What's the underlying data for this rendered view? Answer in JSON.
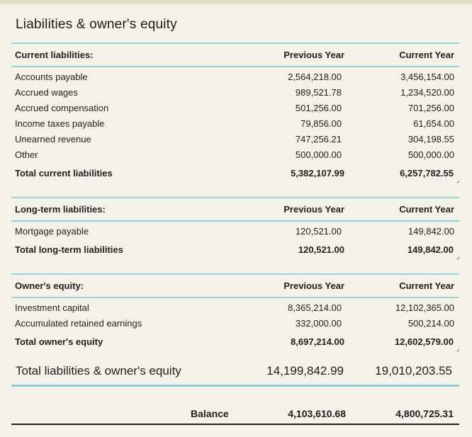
{
  "title": "Liabilities & owner's equity",
  "columns": {
    "previous": "Previous Year",
    "current": "Current Year"
  },
  "current_liabilities": {
    "heading": "Current liabilities:",
    "rows": [
      {
        "label": "Accounts payable",
        "previous": "2,564,218.00",
        "current": "3,456,154.00"
      },
      {
        "label": "Accrued wages",
        "previous": "989,521.78",
        "current": "1,234,520.00"
      },
      {
        "label": "Accrued compensation",
        "previous": "501,256.00",
        "current": "701,256.00"
      },
      {
        "label": "Income taxes payable",
        "previous": "79,856.00",
        "current": "61,654.00"
      },
      {
        "label": "Unearned revenue",
        "previous": "747,256.21",
        "current": "304,198.55"
      },
      {
        "label": "Other",
        "previous": "500,000.00",
        "current": "500,000.00"
      }
    ],
    "total": {
      "label": "Total current liabilities",
      "previous": "5,382,107.99",
      "current": "6,257,782.55"
    }
  },
  "long_term_liabilities": {
    "heading": "Long-term liabilities:",
    "rows": [
      {
        "label": "Mortgage payable",
        "previous": "120,521.00",
        "current": "149,842.00"
      }
    ],
    "total": {
      "label": "Total long-term liabilities",
      "previous": "120,521.00",
      "current": "149,842.00"
    }
  },
  "owners_equity": {
    "heading": "Owner's equity:",
    "rows": [
      {
        "label": "Investment capital",
        "previous": "8,365,214.00",
        "current": "12,102,365.00"
      },
      {
        "label": "Accumulated retained earnings",
        "previous": "332,000.00",
        "current": "500,214.00"
      }
    ],
    "total": {
      "label": "Total owner's equity",
      "previous": "8,697,214.00",
      "current": "12,602,579.00"
    }
  },
  "grand_total": {
    "label": "Total liabilities & owner's equity",
    "previous": "14,199,842.99",
    "current": "19,010,203.55"
  },
  "balance": {
    "label": "Balance",
    "previous": "4,103,610.68",
    "current": "4,800,725.31"
  },
  "colors": {
    "background": "#f4f1e8",
    "rule": "#9cd1dc",
    "text": "#1f1f1f"
  }
}
